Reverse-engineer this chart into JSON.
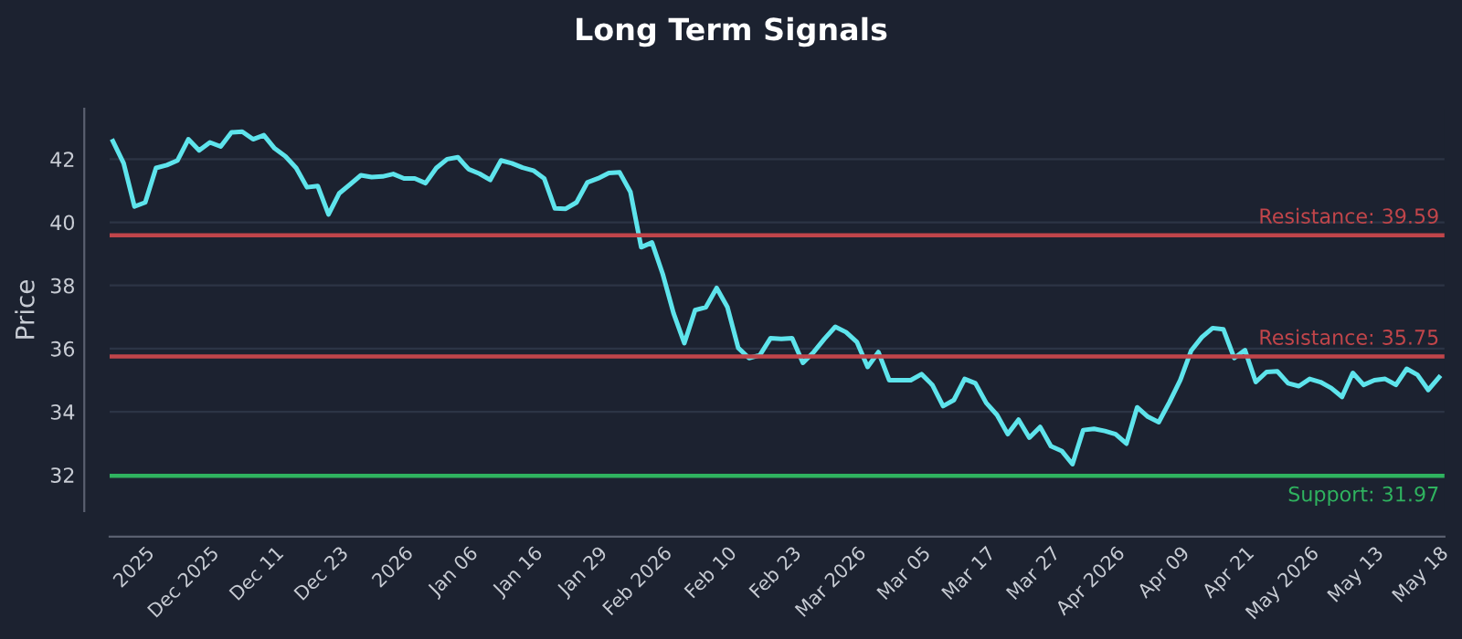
{
  "chart_data": {
    "type": "line",
    "title": "Long Term Signals",
    "ylabel": "Price",
    "categories": [
      null,
      null,
      null,
      "2025",
      null,
      null,
      null,
      null,
      null,
      "Dec 2025",
      null,
      null,
      null,
      null,
      null,
      "Dec 11",
      null,
      null,
      null,
      null,
      null,
      "Dec 23",
      null,
      null,
      null,
      null,
      null,
      "2026",
      null,
      null,
      null,
      null,
      null,
      "Jan 06",
      null,
      null,
      null,
      null,
      null,
      "Jan 16",
      null,
      null,
      null,
      null,
      null,
      "Jan 29",
      null,
      null,
      null,
      null,
      null,
      "Feb 2026",
      null,
      null,
      null,
      null,
      null,
      "Feb 10",
      null,
      null,
      null,
      null,
      null,
      "Feb 23",
      null,
      null,
      null,
      null,
      null,
      "Mar 2026",
      null,
      null,
      null,
      null,
      null,
      "Mar 05",
      null,
      null,
      null,
      null,
      null,
      "Mar 17",
      null,
      null,
      null,
      null,
      null,
      "Mar 27",
      null,
      null,
      null,
      null,
      null,
      "Apr 2026",
      null,
      null,
      null,
      null,
      null,
      "Apr 09",
      null,
      null,
      null,
      null,
      null,
      "Apr 21",
      null,
      null,
      null,
      null,
      null,
      "May 2026",
      null,
      null,
      null,
      null,
      null,
      "May 13",
      null,
      null,
      null,
      null,
      null,
      "May 18"
    ],
    "series": [
      {
        "color": "#5ee4ec",
        "values": [
          42.57,
          41.87,
          40.5,
          40.63,
          41.72,
          41.81,
          41.96,
          42.63,
          42.28,
          42.53,
          42.4,
          42.85,
          42.87,
          42.63,
          42.76,
          42.34,
          42.09,
          41.72,
          41.11,
          41.15,
          40.25,
          40.92,
          41.2,
          41.49,
          41.43,
          41.45,
          41.53,
          41.39,
          41.39,
          41.24,
          41.72,
          42.0,
          42.06,
          41.68,
          41.54,
          41.34,
          41.96,
          41.87,
          41.73,
          41.64,
          41.39,
          40.44,
          40.43,
          40.63,
          41.26,
          41.39,
          41.56,
          41.58,
          40.96,
          39.21,
          39.36,
          38.36,
          37.12,
          36.17,
          37.22,
          37.31,
          37.92,
          37.31,
          36.02,
          35.7,
          35.79,
          36.33,
          36.31,
          36.33,
          35.55,
          35.89,
          36.31,
          36.69,
          36.52,
          36.21,
          35.42,
          35.89,
          35.0,
          35.0,
          35.0,
          35.19,
          34.85,
          34.18,
          34.37,
          35.04,
          34.9,
          34.28,
          33.9,
          33.29,
          33.75,
          33.18,
          33.52,
          32.91,
          32.76,
          32.34,
          33.42,
          33.46,
          33.39,
          33.29,
          32.99,
          34.14,
          33.84,
          33.67,
          34.31,
          35.0,
          35.93,
          36.36,
          36.65,
          36.61,
          35.7,
          35.95,
          34.94,
          35.26,
          35.28,
          34.9,
          34.81,
          35.04,
          34.94,
          34.75,
          34.47,
          35.23,
          34.85,
          35.0,
          35.04,
          34.85,
          35.36,
          35.17,
          34.69,
          35.09
        ]
      }
    ],
    "ylim": [
      30.85,
      43.6
    ],
    "yticks": [
      32,
      34,
      36,
      38,
      40,
      42
    ],
    "grid": "y",
    "marker": "none",
    "line_style": "solid",
    "legend": false,
    "ref_lines": [
      {
        "axis": "y",
        "value": 39.59,
        "label": "Resistance: 39.59",
        "color": "#c0454a"
      },
      {
        "axis": "y",
        "value": 35.75,
        "label": "Resistance: 35.75",
        "color": "#c0454a"
      },
      {
        "axis": "y",
        "value": 31.97,
        "label": "Support: 31.97",
        "color": "#2fb35f"
      }
    ]
  }
}
